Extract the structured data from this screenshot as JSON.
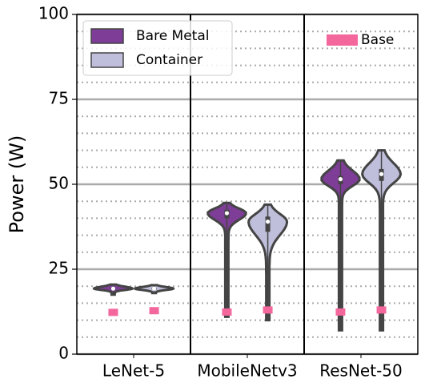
{
  "chart_data": {
    "type": "violin",
    "y_label": "Power (W)",
    "categories": [
      "LeNet-5",
      "MobileNetv3",
      "ResNet-50"
    ],
    "ylim": [
      0,
      100
    ],
    "yticks": [
      0,
      25,
      50,
      75,
      100
    ],
    "minor_yticks": [
      5,
      10,
      15,
      20,
      30,
      35,
      40,
      45,
      55,
      60,
      65,
      70,
      80,
      85,
      90,
      95
    ],
    "grid": true,
    "legend": "upper left",
    "series": [
      {
        "name": "Bare Metal",
        "color": "#7e3d96",
        "min": [
          17.5,
          11,
          7
        ],
        "q1": [
          19,
          40,
          50
        ],
        "median": [
          19.3,
          41.5,
          51.5
        ],
        "q3": [
          19.6,
          42.5,
          52.5
        ],
        "max": [
          20.5,
          44.5,
          57
        ]
      },
      {
        "name": "Container",
        "color": "#bfbfdc",
        "min": [
          18,
          10,
          7
        ],
        "q1": [
          19,
          36,
          51
        ],
        "median": [
          19.3,
          39,
          53
        ],
        "q3": [
          19.6,
          40.5,
          54.5
        ],
        "max": [
          20.3,
          44,
          60
        ]
      }
    ],
    "base": {
      "name": "Base",
      "color": "#f4679d",
      "legend": "upper right",
      "values": [
        [
          12.3,
          12.8
        ],
        [
          12.4,
          13.0
        ],
        [
          12.4,
          13.0
        ]
      ]
    }
  }
}
